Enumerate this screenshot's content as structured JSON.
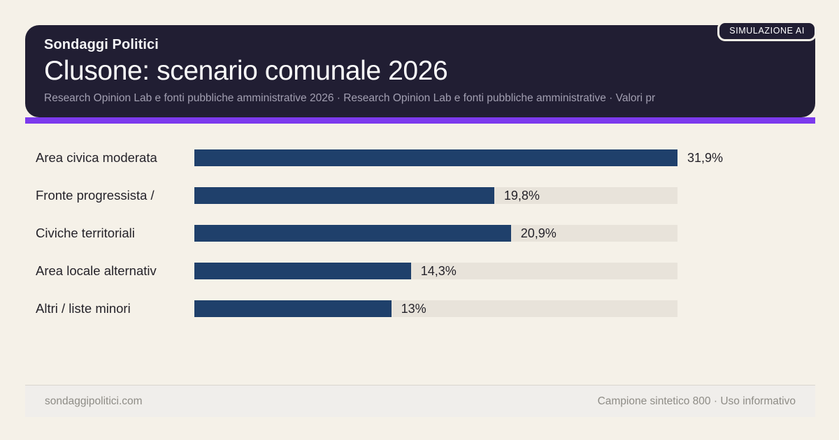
{
  "badge": {
    "label": "SIMULAZIONE AI"
  },
  "header": {
    "brand": "Sondaggi Politici",
    "title": "Clusone: scenario comunale 2026",
    "subtitle": "Research Opinion Lab e fonti pubbliche amministrative 2026 · Research Opinion Lab e fonti pubbliche amministrative · Valori pr"
  },
  "chart_data": {
    "type": "bar",
    "orientation": "horizontal",
    "categories": [
      "Area civica moderata",
      "Fronte progressista /",
      "Civiche territoriali",
      "Area locale alternativ",
      "Altri / liste minori"
    ],
    "values": [
      31.9,
      19.8,
      20.9,
      14.3,
      13
    ],
    "value_labels": [
      "31,9%",
      "19,8%",
      "20,9%",
      "14,3%",
      "13%"
    ],
    "xlim": [
      0,
      31.9
    ],
    "bar_color": "#1f406b",
    "track_color": "#e8e3da",
    "grid": false,
    "legend": false
  },
  "footer": {
    "left": "sondaggipolitici.com",
    "right": "Campione sintetico 800 · Uso informativo"
  },
  "colors": {
    "page_background": "#f5f1e8",
    "card_background": "#211e33",
    "accent_purple": "#7c3aed",
    "bar_navy": "#1f406b",
    "track_gray": "#e8e3da"
  }
}
